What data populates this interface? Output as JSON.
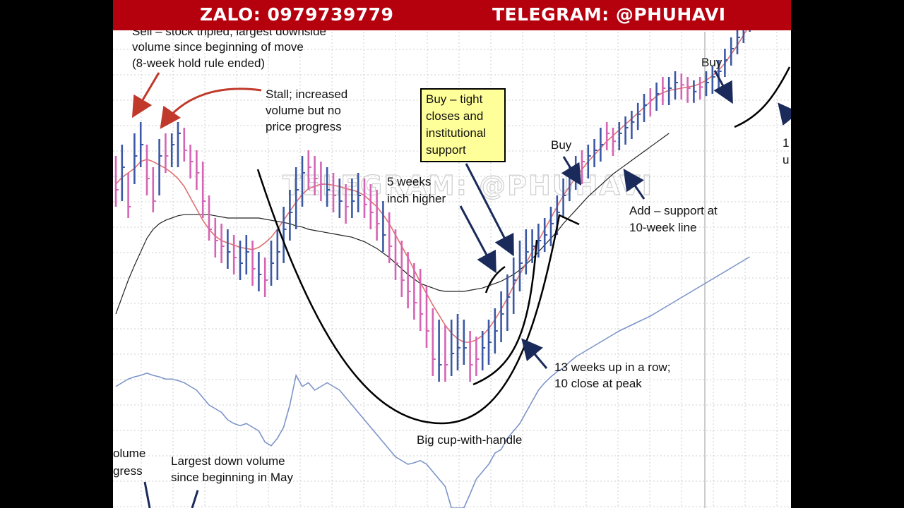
{
  "banner": {
    "zalo": "ZALO: 0979739779",
    "telegram": "TELEGRAM: @PHUHAVI"
  },
  "watermark": "TELEGRAM: @PHUHAVI",
  "annotations": {
    "sell_top_cut": "Sell – stock tripled; largest downside",
    "sell_line2": "volume since beginning of move",
    "sell_line3": "(8-week hold rule ended)",
    "stall_1": "Stall; increased",
    "stall_2": "volume but no",
    "stall_3": "price progress",
    "buy_tight_1": "Buy – tight",
    "buy_tight_2": "closes and",
    "buy_tight_3": "institutional",
    "buy_tight_4": "support",
    "five_weeks_1": "5 weeks",
    "five_weeks_2": "inch higher",
    "buy_mid": "Buy",
    "buy_right": "Buy",
    "add_1": "Add – support at",
    "add_2": "10-week line",
    "thirteen_1": "13 weeks up in a row;",
    "thirteen_2": "10 close at peak",
    "cup": "Big cup-with-handle",
    "volume_cut_1": "olume",
    "volume_cut_2": "gress",
    "largest_down_1": "Largest down volume",
    "largest_down_2": "since beginning in May",
    "right_cut_1": "1",
    "right_cut_2": "u"
  },
  "colors": {
    "up_bar": "#3a58a4",
    "down_bar": "#d565b4",
    "ma10": "#e07070",
    "ma40": "#222222",
    "rs_line": "#7c94c8",
    "banner": "#b5000e",
    "callout_box": "#ffff99"
  },
  "chart_data": {
    "type": "ohlc",
    "title": "",
    "xlabel": "",
    "ylabel": "",
    "bars": [
      {
        "h": 215,
        "l": 170,
        "c": 185,
        "up": false
      },
      {
        "h": 225,
        "l": 175,
        "c": 205,
        "up": true
      },
      {
        "h": 200,
        "l": 160,
        "c": 170,
        "up": false
      },
      {
        "h": 235,
        "l": 190,
        "c": 215,
        "up": true
      },
      {
        "h": 245,
        "l": 205,
        "c": 225,
        "up": true
      },
      {
        "h": 225,
        "l": 180,
        "c": 195,
        "up": false
      },
      {
        "h": 205,
        "l": 165,
        "c": 175,
        "up": false
      },
      {
        "h": 230,
        "l": 180,
        "c": 215,
        "up": true
      },
      {
        "h": 235,
        "l": 200,
        "c": 215,
        "up": false
      },
      {
        "h": 235,
        "l": 205,
        "c": 225,
        "up": true
      },
      {
        "h": 245,
        "l": 205,
        "c": 235,
        "up": true
      },
      {
        "h": 240,
        "l": 210,
        "c": 220,
        "up": false
      },
      {
        "h": 225,
        "l": 195,
        "c": 210,
        "up": false
      },
      {
        "h": 220,
        "l": 185,
        "c": 200,
        "up": false
      },
      {
        "h": 210,
        "l": 160,
        "c": 175,
        "up": false
      },
      {
        "h": 180,
        "l": 140,
        "c": 150,
        "up": false
      },
      {
        "h": 160,
        "l": 125,
        "c": 140,
        "up": false
      },
      {
        "h": 155,
        "l": 120,
        "c": 135,
        "up": false
      },
      {
        "h": 150,
        "l": 115,
        "c": 130,
        "up": true
      },
      {
        "h": 145,
        "l": 110,
        "c": 125,
        "up": false
      },
      {
        "h": 140,
        "l": 105,
        "c": 120,
        "up": true
      },
      {
        "h": 145,
        "l": 110,
        "c": 130,
        "up": true
      },
      {
        "h": 140,
        "l": 100,
        "c": 115,
        "up": false
      },
      {
        "h": 130,
        "l": 95,
        "c": 110,
        "up": true
      },
      {
        "h": 125,
        "l": 90,
        "c": 105,
        "up": false
      },
      {
        "h": 140,
        "l": 100,
        "c": 120,
        "up": true
      },
      {
        "h": 150,
        "l": 105,
        "c": 130,
        "up": true
      },
      {
        "h": 170,
        "l": 120,
        "c": 150,
        "up": true
      },
      {
        "h": 185,
        "l": 140,
        "c": 165,
        "up": true
      },
      {
        "h": 205,
        "l": 150,
        "c": 185,
        "up": true
      },
      {
        "h": 215,
        "l": 170,
        "c": 200,
        "up": true
      },
      {
        "h": 220,
        "l": 185,
        "c": 205,
        "up": false
      },
      {
        "h": 215,
        "l": 180,
        "c": 195,
        "up": false
      },
      {
        "h": 210,
        "l": 175,
        "c": 190,
        "up": false
      },
      {
        "h": 205,
        "l": 170,
        "c": 185,
        "up": true
      },
      {
        "h": 200,
        "l": 165,
        "c": 180,
        "up": false
      },
      {
        "h": 195,
        "l": 160,
        "c": 175,
        "up": true
      },
      {
        "h": 190,
        "l": 155,
        "c": 170,
        "up": false
      },
      {
        "h": 195,
        "l": 160,
        "c": 175,
        "up": true
      },
      {
        "h": 200,
        "l": 165,
        "c": 180,
        "up": true
      },
      {
        "h": 195,
        "l": 160,
        "c": 172,
        "up": false
      },
      {
        "h": 190,
        "l": 150,
        "c": 165,
        "up": false
      },
      {
        "h": 185,
        "l": 140,
        "c": 155,
        "up": false
      },
      {
        "h": 175,
        "l": 130,
        "c": 145,
        "up": true
      },
      {
        "h": 165,
        "l": 120,
        "c": 135,
        "up": false
      },
      {
        "h": 150,
        "l": 105,
        "c": 120,
        "up": false
      },
      {
        "h": 140,
        "l": 90,
        "c": 105,
        "up": false
      },
      {
        "h": 130,
        "l": 80,
        "c": 95,
        "up": false
      },
      {
        "h": 120,
        "l": 70,
        "c": 85,
        "up": false
      },
      {
        "h": 115,
        "l": 60,
        "c": 75,
        "up": false
      },
      {
        "h": 100,
        "l": 45,
        "c": 60,
        "up": false
      },
      {
        "h": 80,
        "l": 20,
        "c": 35,
        "up": false
      },
      {
        "h": 70,
        "l": 15,
        "c": 30,
        "up": true
      },
      {
        "h": 65,
        "l": 15,
        "c": 30,
        "up": false
      },
      {
        "h": 70,
        "l": 20,
        "c": 40,
        "up": true
      },
      {
        "h": 75,
        "l": 25,
        "c": 45,
        "up": true
      },
      {
        "h": 70,
        "l": 30,
        "c": 45,
        "up": true
      },
      {
        "h": 60,
        "l": 15,
        "c": 30,
        "up": false
      },
      {
        "h": 55,
        "l": 20,
        "c": 35,
        "up": false
      },
      {
        "h": 60,
        "l": 25,
        "c": 45,
        "up": true
      },
      {
        "h": 70,
        "l": 30,
        "c": 50,
        "up": true
      },
      {
        "h": 80,
        "l": 40,
        "c": 60,
        "up": true
      },
      {
        "h": 95,
        "l": 50,
        "c": 75,
        "up": true
      },
      {
        "h": 110,
        "l": 60,
        "c": 90,
        "up": true
      },
      {
        "h": 125,
        "l": 75,
        "c": 105,
        "up": true
      },
      {
        "h": 140,
        "l": 95,
        "c": 120,
        "up": true
      },
      {
        "h": 150,
        "l": 110,
        "c": 130,
        "up": true
      },
      {
        "h": 150,
        "l": 120,
        "c": 135,
        "up": true
      },
      {
        "h": 155,
        "l": 125,
        "c": 140,
        "up": true
      },
      {
        "h": 160,
        "l": 130,
        "c": 145,
        "up": true
      },
      {
        "h": 170,
        "l": 135,
        "c": 155,
        "up": true
      },
      {
        "h": 180,
        "l": 145,
        "c": 165,
        "up": true
      },
      {
        "h": 195,
        "l": 160,
        "c": 180,
        "up": true
      },
      {
        "h": 205,
        "l": 175,
        "c": 195,
        "up": true
      },
      {
        "h": 215,
        "l": 185,
        "c": 205,
        "up": true
      },
      {
        "h": 220,
        "l": 190,
        "c": 210,
        "up": false
      },
      {
        "h": 225,
        "l": 195,
        "c": 215,
        "up": true
      },
      {
        "h": 230,
        "l": 205,
        "c": 220,
        "up": true
      },
      {
        "h": 240,
        "l": 210,
        "c": 225,
        "up": true
      },
      {
        "h": 245,
        "l": 220,
        "c": 235,
        "up": false
      },
      {
        "h": 240,
        "l": 215,
        "c": 228,
        "up": false
      },
      {
        "h": 245,
        "l": 220,
        "c": 235,
        "up": true
      },
      {
        "h": 250,
        "l": 225,
        "c": 240,
        "up": true
      },
      {
        "h": 255,
        "l": 230,
        "c": 245,
        "up": true
      },
      {
        "h": 262,
        "l": 238,
        "c": 252,
        "up": true
      },
      {
        "h": 270,
        "l": 245,
        "c": 260,
        "up": true
      },
      {
        "h": 275,
        "l": 250,
        "c": 265,
        "up": false
      },
      {
        "h": 280,
        "l": 255,
        "c": 270,
        "up": true
      },
      {
        "h": 285,
        "l": 260,
        "c": 275,
        "up": false
      },
      {
        "h": 285,
        "l": 260,
        "c": 275,
        "up": true
      },
      {
        "h": 290,
        "l": 265,
        "c": 280,
        "up": true
      },
      {
        "h": 288,
        "l": 265,
        "c": 278,
        "up": false
      },
      {
        "h": 285,
        "l": 262,
        "c": 275,
        "up": false
      },
      {
        "h": 282,
        "l": 262,
        "c": 272,
        "up": true
      },
      {
        "h": 285,
        "l": 265,
        "c": 276,
        "up": false
      },
      {
        "h": 290,
        "l": 268,
        "c": 280,
        "up": true
      },
      {
        "h": 295,
        "l": 270,
        "c": 285,
        "up": true
      },
      {
        "h": 300,
        "l": 275,
        "c": 290,
        "up": true
      },
      {
        "h": 310,
        "l": 285,
        "c": 300,
        "up": true
      },
      {
        "h": 320,
        "l": 295,
        "c": 310,
        "up": true
      },
      {
        "h": 330,
        "l": 305,
        "c": 320,
        "up": true
      },
      {
        "h": 340,
        "l": 315,
        "c": 330,
        "up": true
      },
      {
        "h": 350,
        "l": 325,
        "c": 340,
        "up": true
      },
      {
        "h": 355,
        "l": 330,
        "c": 345,
        "up": true
      },
      {
        "h": 360,
        "l": 335,
        "c": 352,
        "up": true
      }
    ],
    "ma10": [
      190,
      196,
      200,
      204,
      210,
      212,
      210,
      207,
      204,
      200,
      195,
      188,
      178,
      168,
      158,
      150,
      144,
      140,
      138,
      136,
      134,
      133,
      132,
      134,
      138,
      143,
      150,
      158,
      166,
      174,
      181,
      186,
      188,
      190,
      190,
      189,
      188,
      186,
      185,
      183,
      180,
      175,
      170,
      163,
      155,
      145,
      135,
      125,
      114,
      103,
      93,
      83,
      74,
      65,
      58,
      53,
      50,
      50,
      52,
      56,
      62,
      70,
      79,
      89,
      100,
      110,
      120,
      130,
      140,
      150,
      160,
      170,
      180,
      188,
      196,
      203,
      210,
      216,
      222,
      228,
      233,
      238,
      243,
      248,
      253,
      258,
      263,
      268,
      271,
      273,
      274,
      275,
      276,
      277,
      279,
      282,
      286,
      291,
      297,
      305,
      313,
      322,
      331,
      340,
      348
    ],
    "ma40": [
      75,
      90,
      105,
      118,
      130,
      142,
      150,
      155,
      158,
      160,
      162,
      163,
      163,
      163,
      163,
      163,
      162,
      161,
      160,
      160,
      160,
      160,
      160,
      160,
      159,
      158,
      157,
      156,
      155,
      153,
      152,
      150,
      149,
      148,
      147,
      146,
      145,
      144,
      143,
      141,
      139,
      136,
      133,
      129,
      125,
      120,
      115,
      110,
      106,
      102,
      100,
      98,
      96,
      95,
      95,
      95,
      95,
      96,
      97,
      98,
      100,
      102,
      104,
      107,
      110,
      114,
      119,
      124,
      130,
      136,
      142,
      148,
      155,
      161,
      167,
      173,
      179,
      184,
      189,
      194,
      199,
      203,
      207,
      211,
      215,
      219,
      223,
      227,
      231,
      235
    ],
    "rs_line": [
      145,
      150,
      155,
      158,
      160,
      163,
      160,
      158,
      155,
      155,
      153,
      150,
      145,
      140,
      130,
      120,
      115,
      110,
      100,
      95,
      92,
      95,
      90,
      85,
      70,
      65,
      75,
      90,
      120,
      160,
      145,
      150,
      140,
      145,
      150,
      145,
      140,
      130,
      120,
      110,
      100,
      90,
      80,
      70,
      60,
      50,
      45,
      40,
      42,
      45,
      40,
      30,
      20,
      10,
      -50,
      -40,
      -20,
      0,
      20,
      30,
      40,
      55,
      60,
      75,
      85,
      95,
      110,
      125,
      140,
      150,
      158,
      165,
      170,
      178,
      185,
      190,
      195,
      200,
      205,
      210,
      215,
      220,
      224,
      228,
      232,
      236,
      240,
      245,
      250,
      255,
      260,
      265,
      270,
      275,
      280,
      285,
      290,
      295,
      300,
      305,
      310,
      315,
      320
    ]
  }
}
